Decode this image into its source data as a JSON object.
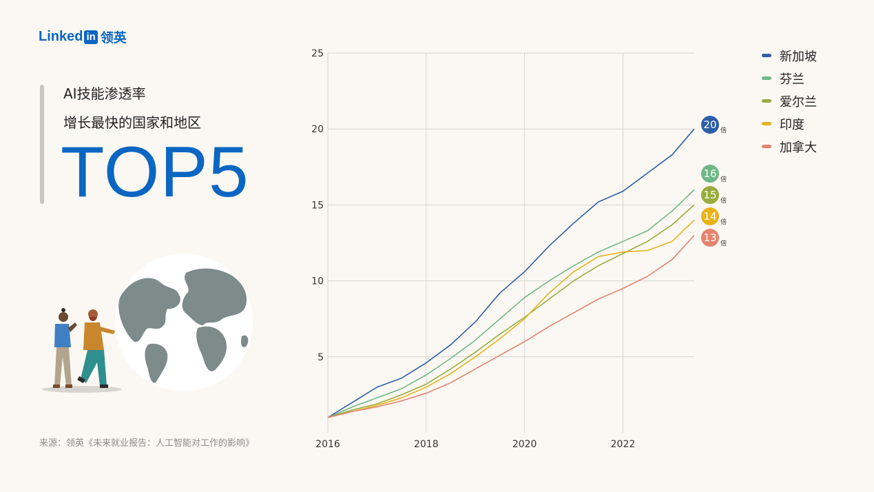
{
  "header": {
    "logo_text": "Linked",
    "logo_in": "in",
    "logo_zh": "领英"
  },
  "left_panel": {
    "subtitle_line1": "AI技能渗透率",
    "subtitle_line2": "增长最快的国家和地区",
    "headline": "TOP5",
    "source": "来源：领英《未来就业报告：人工智能对工作的影响》"
  },
  "colors": {
    "accent": "#0a66c2",
    "background": "#fbf8f3",
    "gridline": "#d6d3cf"
  },
  "chart_data": {
    "type": "line",
    "xlim": [
      2016,
      2023.45
    ],
    "ylim": [
      0,
      25
    ],
    "x_ticks": [
      2016,
      2018,
      2020,
      2022
    ],
    "y_ticks": [
      5,
      10,
      15,
      20,
      25
    ],
    "grid": true,
    "legend_position": "top-right",
    "end_label_suffix": "倍",
    "series": [
      {
        "name": "新加坡",
        "color": "#2c5ea8",
        "end_label": "20",
        "points": [
          [
            2016,
            1.0
          ],
          [
            2016.5,
            2.0
          ],
          [
            2017,
            3.0
          ],
          [
            2017.5,
            3.6
          ],
          [
            2018,
            4.6
          ],
          [
            2018.5,
            5.8
          ],
          [
            2019,
            7.3
          ],
          [
            2019.5,
            9.2
          ],
          [
            2020,
            10.6
          ],
          [
            2020.5,
            12.3
          ],
          [
            2021,
            13.8
          ],
          [
            2021.5,
            15.2
          ],
          [
            2022,
            15.9
          ],
          [
            2022.5,
            17.1
          ],
          [
            2023,
            18.3
          ],
          [
            2023.45,
            20.0
          ]
        ]
      },
      {
        "name": "芬兰",
        "color": "#6fb886",
        "end_label": "16",
        "points": [
          [
            2016,
            1.0
          ],
          [
            2016.5,
            1.7
          ],
          [
            2017,
            2.3
          ],
          [
            2017.5,
            2.9
          ],
          [
            2018,
            3.8
          ],
          [
            2018.5,
            4.9
          ],
          [
            2019,
            6.1
          ],
          [
            2019.5,
            7.5
          ],
          [
            2020,
            8.9
          ],
          [
            2020.5,
            10.0
          ],
          [
            2021,
            11.0
          ],
          [
            2021.5,
            11.9
          ],
          [
            2022,
            12.6
          ],
          [
            2022.5,
            13.3
          ],
          [
            2023,
            14.6
          ],
          [
            2023.45,
            16.0
          ]
        ]
      },
      {
        "name": "爱尔兰",
        "color": "#98ac3c",
        "end_label": "15",
        "points": [
          [
            2016,
            1.0
          ],
          [
            2016.5,
            1.5
          ],
          [
            2017,
            1.9
          ],
          [
            2017.5,
            2.5
          ],
          [
            2018,
            3.2
          ],
          [
            2018.5,
            4.2
          ],
          [
            2019,
            5.3
          ],
          [
            2019.5,
            6.5
          ],
          [
            2020,
            7.6
          ],
          [
            2020.5,
            8.8
          ],
          [
            2021,
            10.0
          ],
          [
            2021.5,
            11.0
          ],
          [
            2022,
            11.8
          ],
          [
            2022.5,
            12.6
          ],
          [
            2023,
            13.7
          ],
          [
            2023.45,
            15.0
          ]
        ]
      },
      {
        "name": "印度",
        "color": "#e8b21a",
        "end_label": "14",
        "points": [
          [
            2016,
            1.0
          ],
          [
            2016.5,
            1.4
          ],
          [
            2017,
            1.8
          ],
          [
            2017.5,
            2.3
          ],
          [
            2018,
            3.0
          ],
          [
            2018.5,
            3.9
          ],
          [
            2019,
            5.0
          ],
          [
            2019.5,
            6.2
          ],
          [
            2020,
            7.5
          ],
          [
            2020.5,
            9.2
          ],
          [
            2021,
            10.6
          ],
          [
            2021.5,
            11.6
          ],
          [
            2022,
            11.9
          ],
          [
            2022.5,
            12.0
          ],
          [
            2023,
            12.6
          ],
          [
            2023.45,
            14.0
          ]
        ]
      },
      {
        "name": "加拿大",
        "color": "#e5836e",
        "end_label": "13",
        "points": [
          [
            2016,
            1.0
          ],
          [
            2016.5,
            1.4
          ],
          [
            2017,
            1.7
          ],
          [
            2017.5,
            2.1
          ],
          [
            2018,
            2.6
          ],
          [
            2018.5,
            3.3
          ],
          [
            2019,
            4.2
          ],
          [
            2019.5,
            5.1
          ],
          [
            2020,
            6.0
          ],
          [
            2020.5,
            7.0
          ],
          [
            2021,
            7.9
          ],
          [
            2021.5,
            8.8
          ],
          [
            2022,
            9.5
          ],
          [
            2022.5,
            10.3
          ],
          [
            2023,
            11.4
          ],
          [
            2023.45,
            13.0
          ]
        ]
      }
    ]
  }
}
